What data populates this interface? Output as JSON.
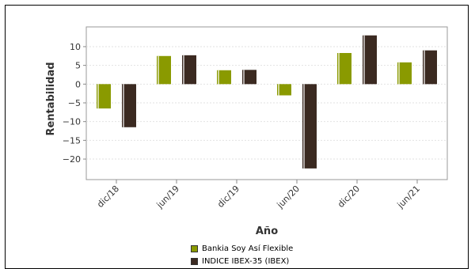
{
  "chart_data": {
    "type": "bar",
    "categories": [
      "dic/18",
      "jun/19",
      "dic/19",
      "jun/20",
      "dic/20",
      "jun/21"
    ],
    "series": [
      {
        "name": "Bankia Soy Así Flexible",
        "values": [
          -6.5,
          7.5,
          3.7,
          -3.0,
          8.3,
          5.8
        ],
        "color": "#8a9a00"
      },
      {
        "name": "INDICE IBEX-35 (IBEX)",
        "values": [
          -11.5,
          7.7,
          3.8,
          -22.5,
          13.0,
          9.0
        ],
        "color": "#3b2a21"
      }
    ],
    "xlabel": "Año",
    "ylabel": "Rentabilidad",
    "ylim": [
      -24,
      14
    ],
    "yticks": [
      10,
      5,
      0,
      -5,
      -10,
      -15,
      -20
    ],
    "ytick_labels": [
      "10",
      "5",
      "0",
      "−5",
      "−10",
      "−15",
      "−20"
    ],
    "grid": true,
    "legend_position": "bottom"
  }
}
